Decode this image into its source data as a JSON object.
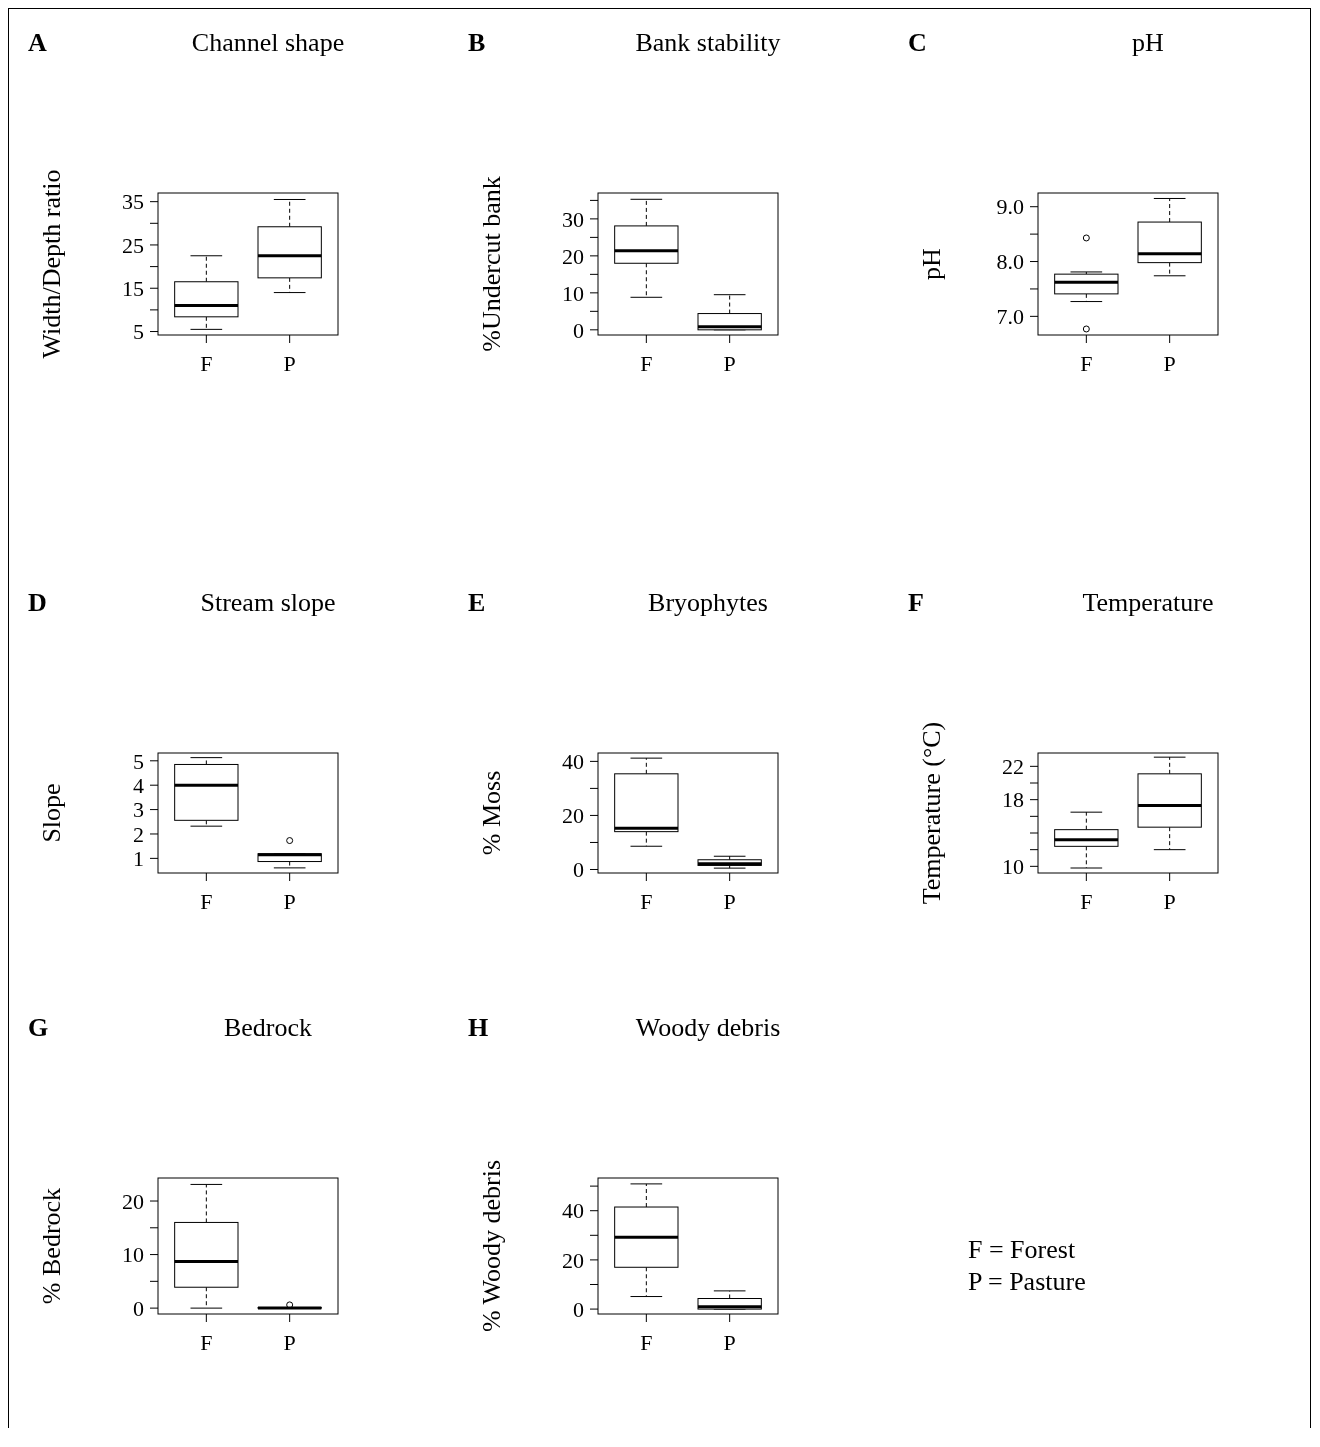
{
  "chart_data": [
    {
      "type": "box",
      "title": "Channel shape",
      "annotations": [
        "A"
      ],
      "ylabel": "Width/Depth ratio",
      "categories": [
        "F",
        "P"
      ],
      "ylim": [
        4.2,
        37
      ],
      "yticks": [
        5,
        {
          "value": 10,
          "label": null
        },
        15,
        {
          "value": 20,
          "label": null
        },
        25,
        {
          "value": 30,
          "label": null
        },
        35
      ],
      "boxes": [
        {
          "low": 5.5,
          "q1": 8.4,
          "median": 11,
          "q3": 16.5,
          "high": 22.5
        },
        {
          "low": 14,
          "q1": 17.4,
          "median": 22.5,
          "q3": 29.2,
          "high": 35.5
        }
      ]
    },
    {
      "type": "box",
      "title": "Bank stability",
      "annotations": [
        "B"
      ],
      "ylabel": "%Undercut bank",
      "categories": [
        "F",
        "P"
      ],
      "ylim": [
        -1.4,
        37
      ],
      "yticks": [
        0,
        {
          "value": 5,
          "label": null
        },
        10,
        {
          "value": 15,
          "label": null
        },
        20,
        {
          "value": 25,
          "label": null
        },
        30,
        {
          "value": 35,
          "label": null
        }
      ],
      "boxes": [
        {
          "low": 8.8,
          "q1": 18,
          "median": 21.4,
          "q3": 28.1,
          "high": 35.3
        },
        {
          "low": 0,
          "q1": 0,
          "median": 0.8,
          "q3": 4.4,
          "high": 9.5
        }
      ]
    },
    {
      "type": "box",
      "title": "pH",
      "annotations": [
        "C"
      ],
      "ylabel": "pH",
      "categories": [
        "F",
        "P"
      ],
      "ylim": [
        6.66,
        9.25
      ],
      "yticks": [
        {
          "value": 7,
          "label": "7.0"
        },
        {
          "value": 7.5,
          "label": null
        },
        {
          "value": 8,
          "label": "8.0"
        },
        {
          "value": 8.5,
          "label": null
        },
        {
          "value": 9,
          "label": "9.0"
        }
      ],
      "boxes": [
        {
          "low": 7.27,
          "q1": 7.41,
          "median": 7.62,
          "q3": 7.77,
          "high": 7.81,
          "outliers": [
            8.43,
            6.77
          ]
        },
        {
          "low": 7.74,
          "q1": 7.98,
          "median": 8.14,
          "q3": 8.72,
          "high": 9.15
        }
      ]
    },
    {
      "type": "box",
      "title": "Stream slope",
      "annotations": [
        "D"
      ],
      "ylabel": "Slope",
      "categories": [
        "F",
        "P"
      ],
      "ylim": [
        0.4,
        5.32
      ],
      "yticks": [
        1,
        2,
        3,
        4,
        5
      ],
      "boxes": [
        {
          "low": 2.32,
          "q1": 2.56,
          "median": 4,
          "q3": 4.85,
          "high": 5.13
        },
        {
          "low": 0.61,
          "q1": 0.87,
          "median": 1.15,
          "q3": 1.19,
          "high": 1.19,
          "outliers": [
            1.73
          ]
        }
      ]
    },
    {
      "type": "box",
      "title": "Bryophytes",
      "annotations": [
        "E"
      ],
      "ylabel": "% Moss",
      "categories": [
        "F",
        "P"
      ],
      "ylim": [
        -1.3,
        43.1
      ],
      "yticks": [
        0,
        {
          "value": 10,
          "label": null
        },
        20,
        {
          "value": 30,
          "label": null
        },
        40
      ],
      "boxes": [
        {
          "low": 8.6,
          "q1": 14,
          "median": 15.3,
          "q3": 35.4,
          "high": 41.2
        },
        {
          "low": 0.5,
          "q1": 1.5,
          "median": 2.1,
          "q3": 3.6,
          "high": 4.9
        }
      ]
    },
    {
      "type": "box",
      "title": "Temperature",
      "annotations": [
        "F"
      ],
      "ylabel": "Temperature (°C)",
      "categories": [
        "F",
        "P"
      ],
      "ylim": [
        9.2,
        23.6
      ],
      "yticks": [
        10,
        {
          "value": 12,
          "label": null
        },
        {
          "value": 14,
          "label": null
        },
        {
          "value": 16,
          "label": null
        },
        18,
        {
          "value": 20,
          "label": null
        },
        22
      ],
      "boxes": [
        {
          "low": 9.8,
          "q1": 12.4,
          "median": 13.2,
          "q3": 14.4,
          "high": 16.5
        },
        {
          "low": 12,
          "q1": 14.7,
          "median": 17.3,
          "q3": 21.1,
          "high": 23.1
        }
      ]
    },
    {
      "type": "box",
      "title": "Bedrock",
      "annotations": [
        "G"
      ],
      "ylabel": "% Bedrock",
      "categories": [
        "F",
        "P"
      ],
      "ylim": [
        -1.1,
        24.3
      ],
      "yticks": [
        0,
        {
          "value": 5,
          "label": null
        },
        10,
        {
          "value": 15,
          "label": null
        },
        20
      ],
      "boxes": [
        {
          "low": 0,
          "q1": 3.9,
          "median": 8.7,
          "q3": 16,
          "high": 23.1
        },
        {
          "low": 0,
          "q1": 0,
          "median": 0,
          "q3": 0.1,
          "high": 0.1,
          "outliers": [
            0.6
          ]
        }
      ]
    },
    {
      "type": "box",
      "title": "Woody debris",
      "annotations": [
        "H"
      ],
      "ylabel": "% Woody debris",
      "categories": [
        "F",
        "P"
      ],
      "ylim": [
        -2,
        53.3
      ],
      "yticks": [
        0,
        {
          "value": 10,
          "label": null
        },
        20,
        {
          "value": 30,
          "label": null
        },
        40,
        {
          "value": 50,
          "label": null
        }
      ],
      "boxes": [
        {
          "low": 5.1,
          "q1": 17,
          "median": 29.2,
          "q3": 41.5,
          "high": 50.9
        },
        {
          "low": 0,
          "q1": 0,
          "median": 0.9,
          "q3": 4.3,
          "high": 7.4
        }
      ]
    },
    {
      "type": "other",
      "annotations": [
        "F = Forest",
        "P = Pasture"
      ]
    }
  ]
}
